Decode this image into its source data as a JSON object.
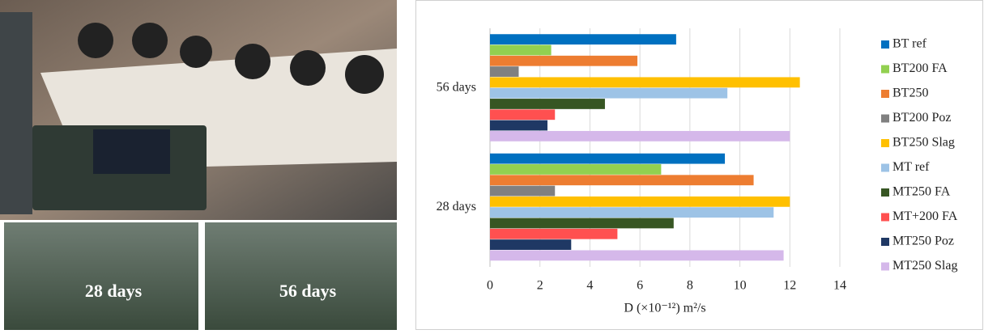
{
  "photos": {
    "labels": [
      "28 days",
      "56 days"
    ]
  },
  "chart_data": {
    "type": "bar",
    "orientation": "horizontal",
    "xlabel": "D (×10⁻¹²) m²/s",
    "categories": [
      "56 days",
      "28 days"
    ],
    "series": [
      {
        "name": "BT ref",
        "color": "#0070c0",
        "values": [
          7.45,
          9.4
        ]
      },
      {
        "name": "BT200 FA",
        "color": "#92d050",
        "values": [
          2.45,
          6.85
        ]
      },
      {
        "name": "BT250",
        "color": "#ed7d31",
        "values": [
          5.9,
          10.55
        ]
      },
      {
        "name": "BT200 Poz",
        "color": "#808080",
        "values": [
          1.15,
          2.6
        ]
      },
      {
        "name": "BT250 Slag",
        "color": "#ffc000",
        "values": [
          12.4,
          12.0
        ]
      },
      {
        "name": "MT ref",
        "color": "#9dc3e6",
        "values": [
          9.5,
          11.35
        ]
      },
      {
        "name": "MT250 FA",
        "color": "#375623",
        "values": [
          4.6,
          7.35
        ]
      },
      {
        "name": "MT+200 FA",
        "color": "#ff5050",
        "values": [
          2.6,
          5.1
        ]
      },
      {
        "name": "MT250 Poz",
        "color": "#1f3864",
        "values": [
          2.3,
          3.25
        ]
      },
      {
        "name": "MT250 Slag",
        "color": "#d5b8ea",
        "values": [
          12.0,
          11.75
        ]
      }
    ],
    "xlim": [
      0,
      14
    ],
    "xticks": [
      0,
      2,
      4,
      6,
      8,
      10,
      12,
      14
    ],
    "grid": true,
    "legend": "right"
  }
}
